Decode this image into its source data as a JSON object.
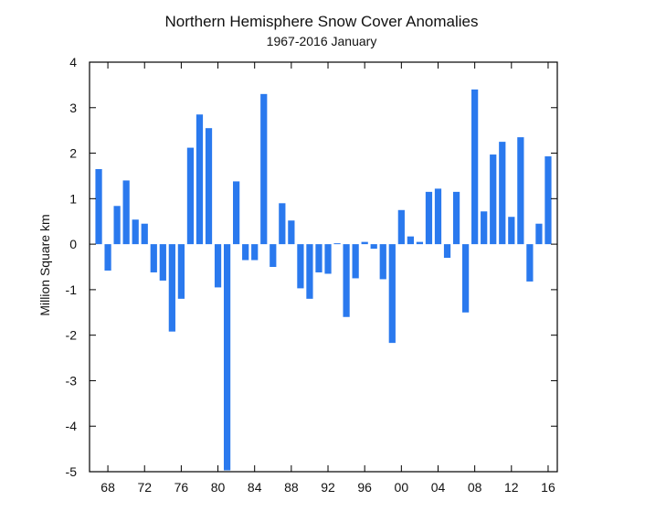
{
  "chart_data": {
    "type": "bar",
    "title": "Northern Hemisphere Snow Cover Anomalies",
    "subtitle": "1967-2016 January",
    "ylabel": "Million Square km",
    "xlabel": "",
    "ylim": [
      -5,
      4
    ],
    "yticks": [
      4,
      3,
      2,
      1,
      0,
      -1,
      -2,
      -3,
      -4,
      -5
    ],
    "xlim": [
      1966,
      2017
    ],
    "xtick_years": [
      1968,
      1972,
      1976,
      1980,
      1984,
      1988,
      1992,
      1996,
      2000,
      2004,
      2008,
      2012,
      2016
    ],
    "xtick_labels": [
      "68",
      "72",
      "76",
      "80",
      "84",
      "88",
      "92",
      "96",
      "00",
      "04",
      "08",
      "12",
      "16"
    ],
    "bar_color": "#2a79ee",
    "grid": false,
    "categories": [
      1967,
      1968,
      1969,
      1970,
      1971,
      1972,
      1973,
      1974,
      1975,
      1976,
      1977,
      1978,
      1979,
      1980,
      1981,
      1982,
      1983,
      1984,
      1985,
      1986,
      1987,
      1988,
      1989,
      1990,
      1991,
      1992,
      1993,
      1994,
      1995,
      1996,
      1997,
      1998,
      1999,
      2000,
      2001,
      2002,
      2003,
      2004,
      2005,
      2006,
      2007,
      2008,
      2009,
      2010,
      2011,
      2012,
      2013,
      2014,
      2015,
      2016
    ],
    "values": [
      1.65,
      -0.58,
      0.84,
      1.4,
      0.54,
      0.45,
      -0.62,
      -0.8,
      -1.92,
      -1.2,
      2.12,
      2.85,
      2.55,
      -0.95,
      -4.97,
      1.38,
      -0.35,
      -0.35,
      3.3,
      -0.5,
      0.9,
      0.52,
      -0.97,
      -1.2,
      -0.62,
      -0.65,
      0.02,
      -1.6,
      -0.75,
      0.05,
      -0.1,
      -0.77,
      -2.17,
      0.75,
      0.17,
      0.05,
      1.15,
      1.22,
      -0.3,
      1.15,
      -1.5,
      3.4,
      0.72,
      1.97,
      2.25,
      0.6,
      2.35,
      -0.82,
      0.45,
      1.93
    ]
  }
}
